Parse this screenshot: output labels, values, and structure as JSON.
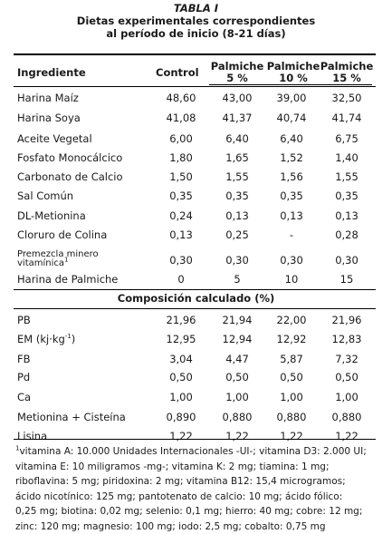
{
  "table": {
    "title": "TABLA I",
    "subtitle_line1": "Dietas experimentales correspondientes",
    "subtitle_line2": "al período de inicio (8-21 días)",
    "header": {
      "ingredient": "Ingrediente",
      "control": "Control",
      "palmiche_5_top": "Palmiche",
      "palmiche_5_bottom": "5 %",
      "palmiche_10_top": "Palmiche",
      "palmiche_10_bottom": "10 %",
      "palmiche_15_top": "Palmiche",
      "palmiche_15_bottom": "15 %"
    },
    "rows": [
      {
        "name": "Harina Maíz",
        "values": [
          "48,60",
          "43,00",
          "39,00",
          "32,50"
        ]
      },
      {
        "name": "Harina Soya",
        "values": [
          "41,08",
          "41,37",
          "40,74",
          "41,74"
        ]
      },
      {
        "name": "Aceite Vegetal",
        "values": [
          "6,00",
          "6,40",
          "6,40",
          "6,75"
        ]
      },
      {
        "name": "Fosfato Monocálcico",
        "values": [
          "1,80",
          "1,65",
          "1,52",
          "1,40"
        ]
      },
      {
        "name": "Carbonato de Calcio",
        "values": [
          "1,50",
          "1,55",
          "1,56",
          "1,55"
        ]
      },
      {
        "name": "Sal Común",
        "values": [
          "0,35",
          "0,35",
          "0,35",
          "0,35"
        ]
      },
      {
        "name": "DL-Metionina",
        "values": [
          "0,24",
          "0,13",
          "0,13",
          "0,13"
        ]
      },
      {
        "name": "Cloruro de Colina",
        "values": [
          "0,13",
          "0,25",
          "-",
          "0,28"
        ]
      },
      {
        "name_line1": "Premezcla minero",
        "name_line2": "vitamínica",
        "name_sup": "1",
        "values": [
          "0,30",
          "0,30",
          "0,30",
          "0,30"
        ]
      },
      {
        "name": "Harina de Palmiche",
        "values": [
          "0",
          "5",
          "10",
          "15"
        ]
      }
    ],
    "section_title": "Composición calculado (%)",
    "composition": [
      {
        "name": "PB",
        "values": [
          "21,96",
          "21,94",
          "22,00",
          "21,96"
        ]
      },
      {
        "name": "EM (kj·kg",
        "name_sup": "-1",
        "name_suffix": ")",
        "values": [
          "12,95",
          "12,94",
          "12,92",
          "12,83"
        ]
      },
      {
        "name": "FB",
        "values": [
          "3,04",
          "4,47",
          "5,87",
          "7,32"
        ]
      },
      {
        "name": "Pd",
        "values": [
          "0,50",
          "0,50",
          "0,50",
          "0,50"
        ]
      },
      {
        "name": "Ca",
        "values": [
          "1,00",
          "1,00",
          "1,00",
          "1,00"
        ]
      },
      {
        "name": "Metionina + Cisteína",
        "values": [
          "0,890",
          "0,880",
          "0,880",
          "0,880"
        ]
      },
      {
        "name": "Lisina",
        "values": [
          "1,22",
          "1,22",
          "1,22",
          "1,22"
        ]
      }
    ],
    "footnote_marker": "1",
    "footnote_lines": [
      "vitamina A: 10.000 Unidades Internacionales -UI-; vitamina D3: 2.000 UI;",
      "vitamina E: 10 miligramos -mg-; vitamina K: 2 mg; tiamina: 1 mg;",
      "riboflavina: 5 mg; piridoxina: 2 mg; vitamina B12: 15,4 microgramos;",
      "ácido nicotínico: 125 mg; pantotenato de calcio: 10 mg; ácido fólico:",
      "0,25 mg; biotina: 0,02 mg; selenio: 0,1 mg; hierro: 40 mg; cobre: 12 mg;",
      "zinc: 120 mg; magnesio: 100 mg; iodo: 2,5 mg; cobalto: 0,75 mg"
    ]
  }
}
